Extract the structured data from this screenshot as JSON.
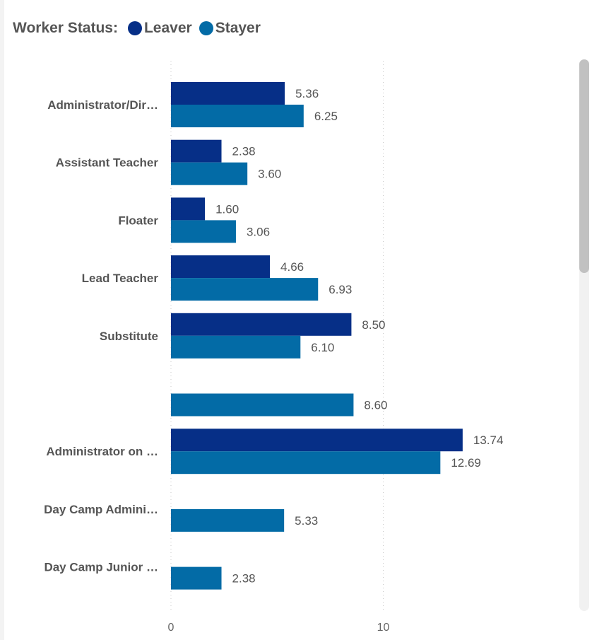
{
  "legend": {
    "title": "Worker Status:",
    "items": [
      {
        "label": "Leaver",
        "color": "#062F87"
      },
      {
        "label": "Stayer",
        "color": "#036BA6"
      }
    ]
  },
  "chart_data": {
    "type": "bar",
    "orientation": "horizontal",
    "categories": [
      "Administrator/Dir…",
      "Assistant Teacher",
      "Floater",
      "Lead Teacher",
      "Substitute",
      "",
      "Administrator on …",
      "Day Camp Admini…",
      "Day Camp Junior …"
    ],
    "series": [
      {
        "name": "Leaver",
        "color": "#062F87",
        "values": [
          5.36,
          2.38,
          1.6,
          4.66,
          8.5,
          null,
          13.74,
          null,
          null
        ]
      },
      {
        "name": "Stayer",
        "color": "#036BA6",
        "values": [
          6.25,
          3.6,
          3.06,
          6.93,
          6.1,
          8.6,
          12.69,
          5.33,
          2.38
        ]
      }
    ],
    "data_labels": [
      [
        "5.36",
        "2.38",
        "1.60",
        "4.66",
        "8.50",
        null,
        "13.74",
        null,
        null
      ],
      [
        "6.25",
        "3.60",
        "3.06",
        "6.93",
        "6.10",
        "8.60",
        "12.69",
        "5.33",
        "2.38"
      ]
    ],
    "x_ticks": [
      "0",
      "10"
    ],
    "xlim": [
      0,
      19.3
    ],
    "grid": "vertical-dotted",
    "legend_position": "top-left"
  }
}
